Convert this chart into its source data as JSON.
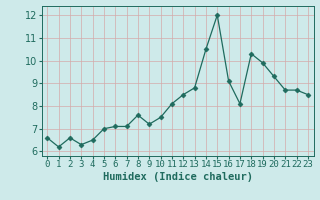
{
  "x": [
    0,
    1,
    2,
    3,
    4,
    5,
    6,
    7,
    8,
    9,
    10,
    11,
    12,
    13,
    14,
    15,
    16,
    17,
    18,
    19,
    20,
    21,
    22,
    23
  ],
  "y": [
    6.6,
    6.2,
    6.6,
    6.3,
    6.5,
    7.0,
    7.1,
    7.1,
    7.6,
    7.2,
    7.5,
    8.1,
    8.5,
    8.8,
    10.5,
    12.0,
    9.1,
    8.1,
    10.3,
    9.9,
    9.3,
    8.7,
    8.7,
    8.5
  ],
  "xlabel": "Humidex (Indice chaleur)",
  "line_color": "#1f6b5e",
  "marker": "D",
  "marker_size": 2.5,
  "bg_color": "#ceeaea",
  "grid_color": "#b0d8d8",
  "tick_label_color": "#1f6b5e",
  "ylim": [
    5.8,
    12.4
  ],
  "yticks": [
    6,
    7,
    8,
    9,
    10,
    11,
    12
  ],
  "xlim": [
    -0.5,
    23.5
  ],
  "xlabel_color": "#1f6b5e",
  "xlabel_fontsize": 7.5,
  "tick_fontsize": 6.5,
  "ytick_fontsize": 7
}
